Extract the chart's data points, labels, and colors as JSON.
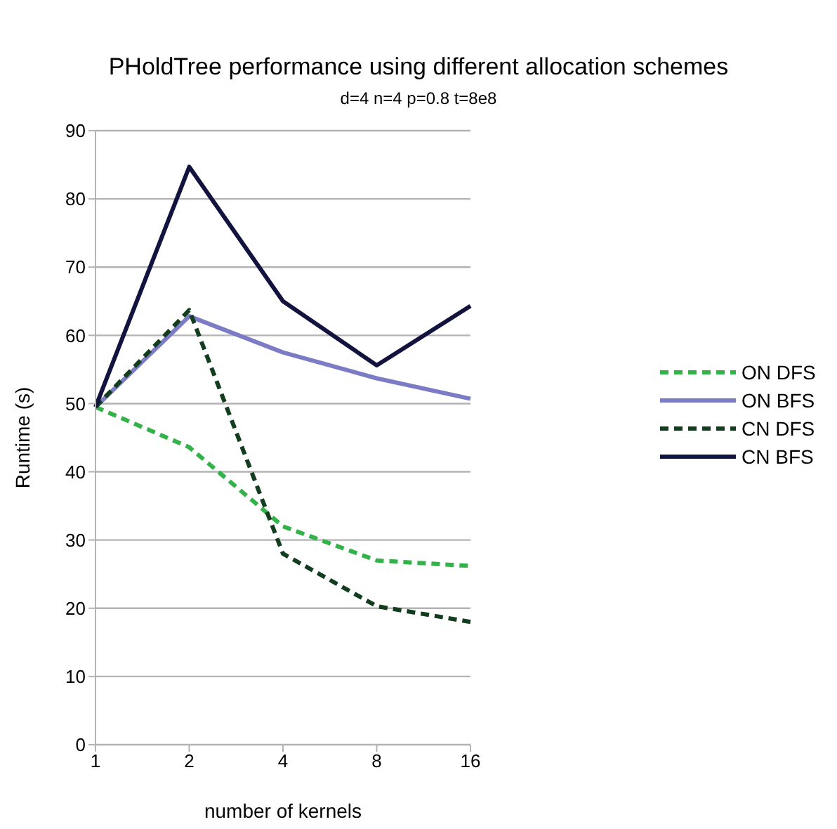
{
  "chart_data": {
    "type": "line",
    "title": "PHoldTree performance using different allocation schemes",
    "subtitle": "d=4 n=4 p=0.8 t=8e8",
    "xlabel": "number of kernels",
    "ylabel": "Runtime (s)",
    "categories": [
      "1",
      "2",
      "4",
      "8",
      "16"
    ],
    "series": [
      {
        "name": "ON DFS",
        "color": "#33b24a",
        "line_style": "dashed",
        "values": [
          49.5,
          43.6,
          32,
          27,
          26.2
        ]
      },
      {
        "name": "ON BFS",
        "color": "#7b7bc6",
        "line_style": "solid",
        "values": [
          49.5,
          62.8,
          57.5,
          53.7,
          50.7
        ]
      },
      {
        "name": "CN DFS",
        "color": "#123d1e",
        "line_style": "dashed",
        "values": [
          49.5,
          63.7,
          28,
          20.3,
          18
        ]
      },
      {
        "name": "CN BFS",
        "color": "#13133f",
        "line_style": "solid",
        "values": [
          49.5,
          84.7,
          65,
          55.6,
          64.3
        ]
      }
    ],
    "ylim": [
      0,
      90
    ],
    "yticks": [
      0,
      10,
      20,
      30,
      40,
      50,
      60,
      70,
      80,
      90
    ],
    "grid": "y",
    "legend": "right",
    "marker": "none"
  }
}
